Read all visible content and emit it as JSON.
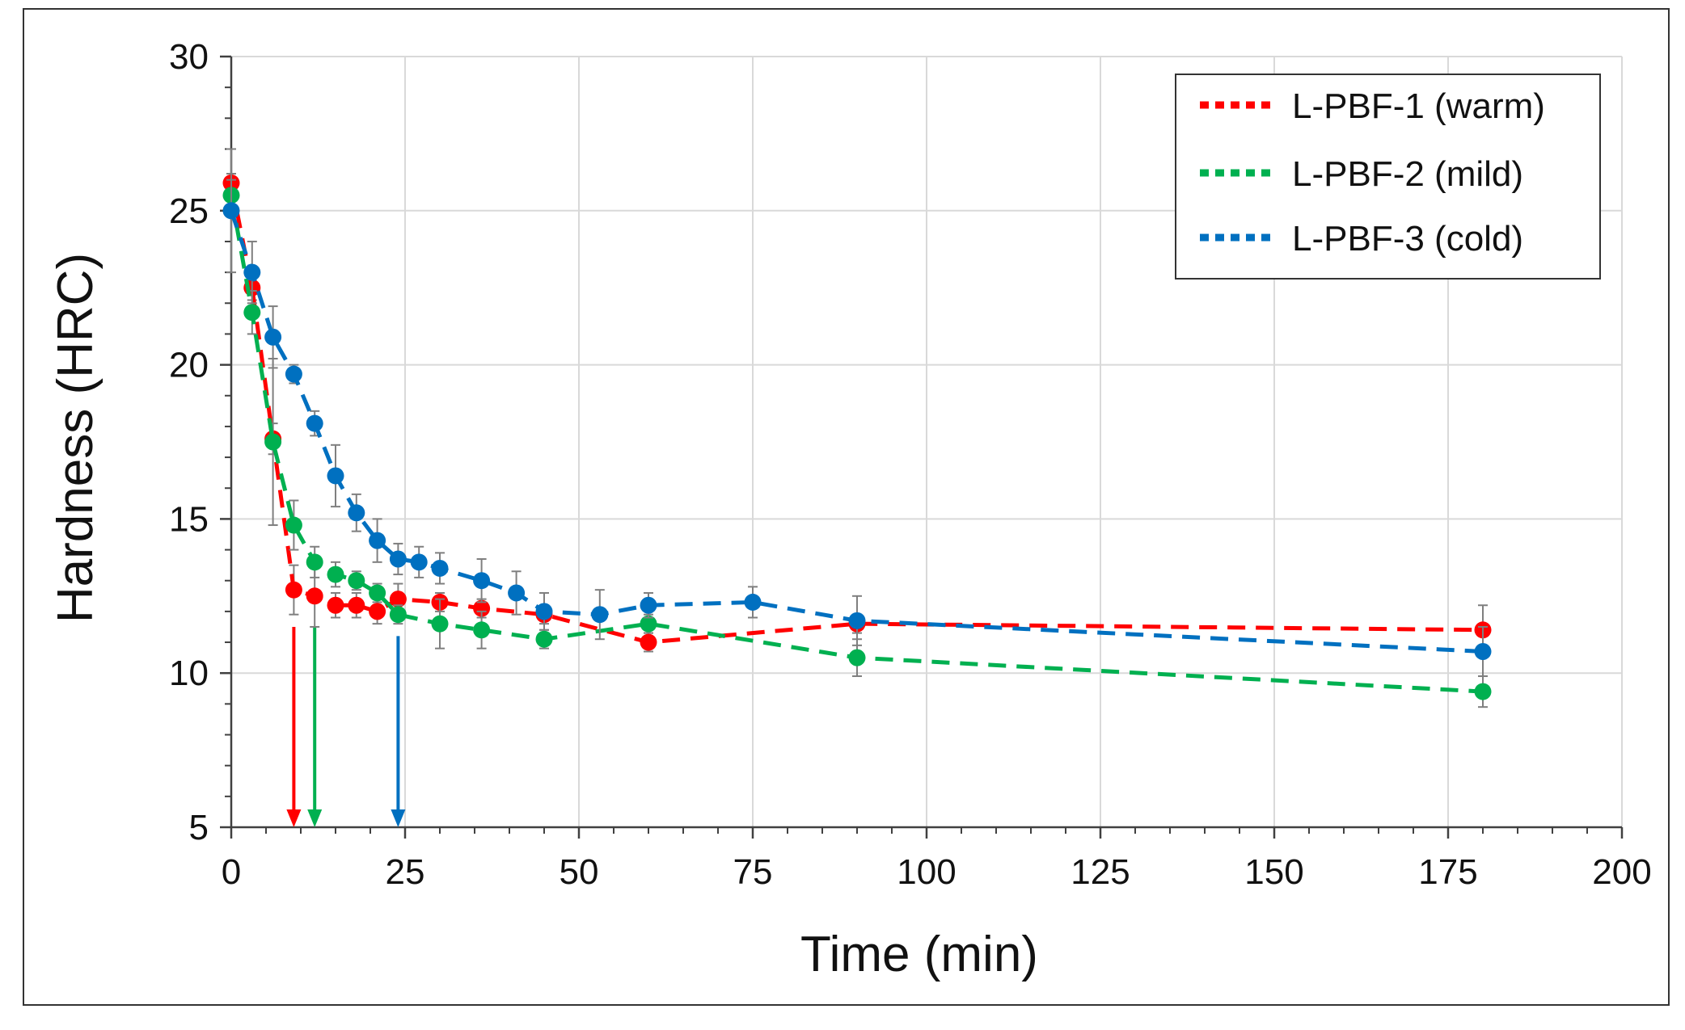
{
  "chart_data": {
    "type": "line",
    "title": "",
    "xlabel": "Time (min)",
    "ylabel": "Hardness (HRC)",
    "xlim": [
      0,
      200
    ],
    "ylim": [
      5,
      30
    ],
    "xticks": [
      0,
      25,
      50,
      75,
      100,
      125,
      150,
      175,
      200
    ],
    "yticks": [
      5,
      10,
      15,
      20,
      25,
      30
    ],
    "grid": true,
    "legend_position": "top-right",
    "series": [
      {
        "name": "L-PBF-1 (warm)",
        "color": "#ff0000",
        "points": [
          {
            "x": 0,
            "y": 25.9,
            "err": 0.3
          },
          {
            "x": 3,
            "y": 22.5,
            "err": 0.4
          },
          {
            "x": 6,
            "y": 17.6,
            "err": 0.5
          },
          {
            "x": 9,
            "y": 12.7,
            "err": 0.8
          },
          {
            "x": 12,
            "y": 12.5,
            "err": 1.0
          },
          {
            "x": 15,
            "y": 12.2,
            "err": 0.4
          },
          {
            "x": 18,
            "y": 12.2,
            "err": 0.4
          },
          {
            "x": 21,
            "y": 12.0,
            "err": 0.4
          },
          {
            "x": 24,
            "y": 12.4,
            "err": 0.5
          },
          {
            "x": 30,
            "y": 12.3,
            "err": 0.3
          },
          {
            "x": 36,
            "y": 12.1,
            "err": 0.3
          },
          {
            "x": 45,
            "y": 11.9,
            "err": 0.3
          },
          {
            "x": 60,
            "y": 11.0,
            "err": 0.3
          },
          {
            "x": 90,
            "y": 11.6,
            "err": 0.3
          },
          {
            "x": 180,
            "y": 11.4,
            "err": 0.8
          }
        ]
      },
      {
        "name": "L-PBF-2 (mild)",
        "color": "#00b050",
        "points": [
          {
            "x": 0,
            "y": 25.5,
            "err": 0.5
          },
          {
            "x": 3,
            "y": 21.7,
            "err": 0.7
          },
          {
            "x": 6,
            "y": 17.5,
            "err": 2.7
          },
          {
            "x": 9,
            "y": 14.8,
            "err": 0.8
          },
          {
            "x": 12,
            "y": 13.6,
            "err": 0.5
          },
          {
            "x": 15,
            "y": 13.2,
            "err": 0.4
          },
          {
            "x": 18,
            "y": 13.0,
            "err": 0.3
          },
          {
            "x": 21,
            "y": 12.6,
            "err": 0.3
          },
          {
            "x": 24,
            "y": 11.9,
            "err": 0.3
          },
          {
            "x": 30,
            "y": 11.6,
            "err": 0.8
          },
          {
            "x": 36,
            "y": 11.4,
            "err": 0.6
          },
          {
            "x": 45,
            "y": 11.1,
            "err": 0.3
          },
          {
            "x": 60,
            "y": 11.6,
            "err": 0.3
          },
          {
            "x": 90,
            "y": 10.5,
            "err": 0.6
          },
          {
            "x": 180,
            "y": 9.4,
            "err": 0.5
          }
        ]
      },
      {
        "name": "L-PBF-3 (cold)",
        "color": "#0070c0",
        "points": [
          {
            "x": 0,
            "y": 25.0,
            "err": 2.0
          },
          {
            "x": 3,
            "y": 23.0,
            "err": 1.0
          },
          {
            "x": 6,
            "y": 20.9,
            "err": 1.0
          },
          {
            "x": 9,
            "y": 19.7,
            "err": 0.3
          },
          {
            "x": 12,
            "y": 18.1,
            "err": 0.4
          },
          {
            "x": 15,
            "y": 16.4,
            "err": 1.0
          },
          {
            "x": 18,
            "y": 15.2,
            "err": 0.6
          },
          {
            "x": 21,
            "y": 14.3,
            "err": 0.7
          },
          {
            "x": 24,
            "y": 13.7,
            "err": 0.5
          },
          {
            "x": 27,
            "y": 13.6,
            "err": 0.5
          },
          {
            "x": 30,
            "y": 13.4,
            "err": 0.5
          },
          {
            "x": 36,
            "y": 13.0,
            "err": 0.7
          },
          {
            "x": 41,
            "y": 12.6,
            "err": 0.7
          },
          {
            "x": 45,
            "y": 12.0,
            "err": 0.6
          },
          {
            "x": 53,
            "y": 11.9,
            "err": 0.8
          },
          {
            "x": 60,
            "y": 12.2,
            "err": 0.4
          },
          {
            "x": 75,
            "y": 12.3,
            "err": 0.5
          },
          {
            "x": 90,
            "y": 11.7,
            "err": 0.8
          },
          {
            "x": 180,
            "y": 10.7,
            "err": 0.8
          }
        ]
      }
    ],
    "arrows": [
      {
        "x": 9,
        "color": "#ff0000",
        "from_y": 11.5,
        "to_y": 5
      },
      {
        "x": 12,
        "color": "#00b050",
        "from_y": 11.5,
        "to_y": 5
      },
      {
        "x": 24,
        "color": "#0070c0",
        "from_y": 11.2,
        "to_y": 5
      }
    ]
  }
}
